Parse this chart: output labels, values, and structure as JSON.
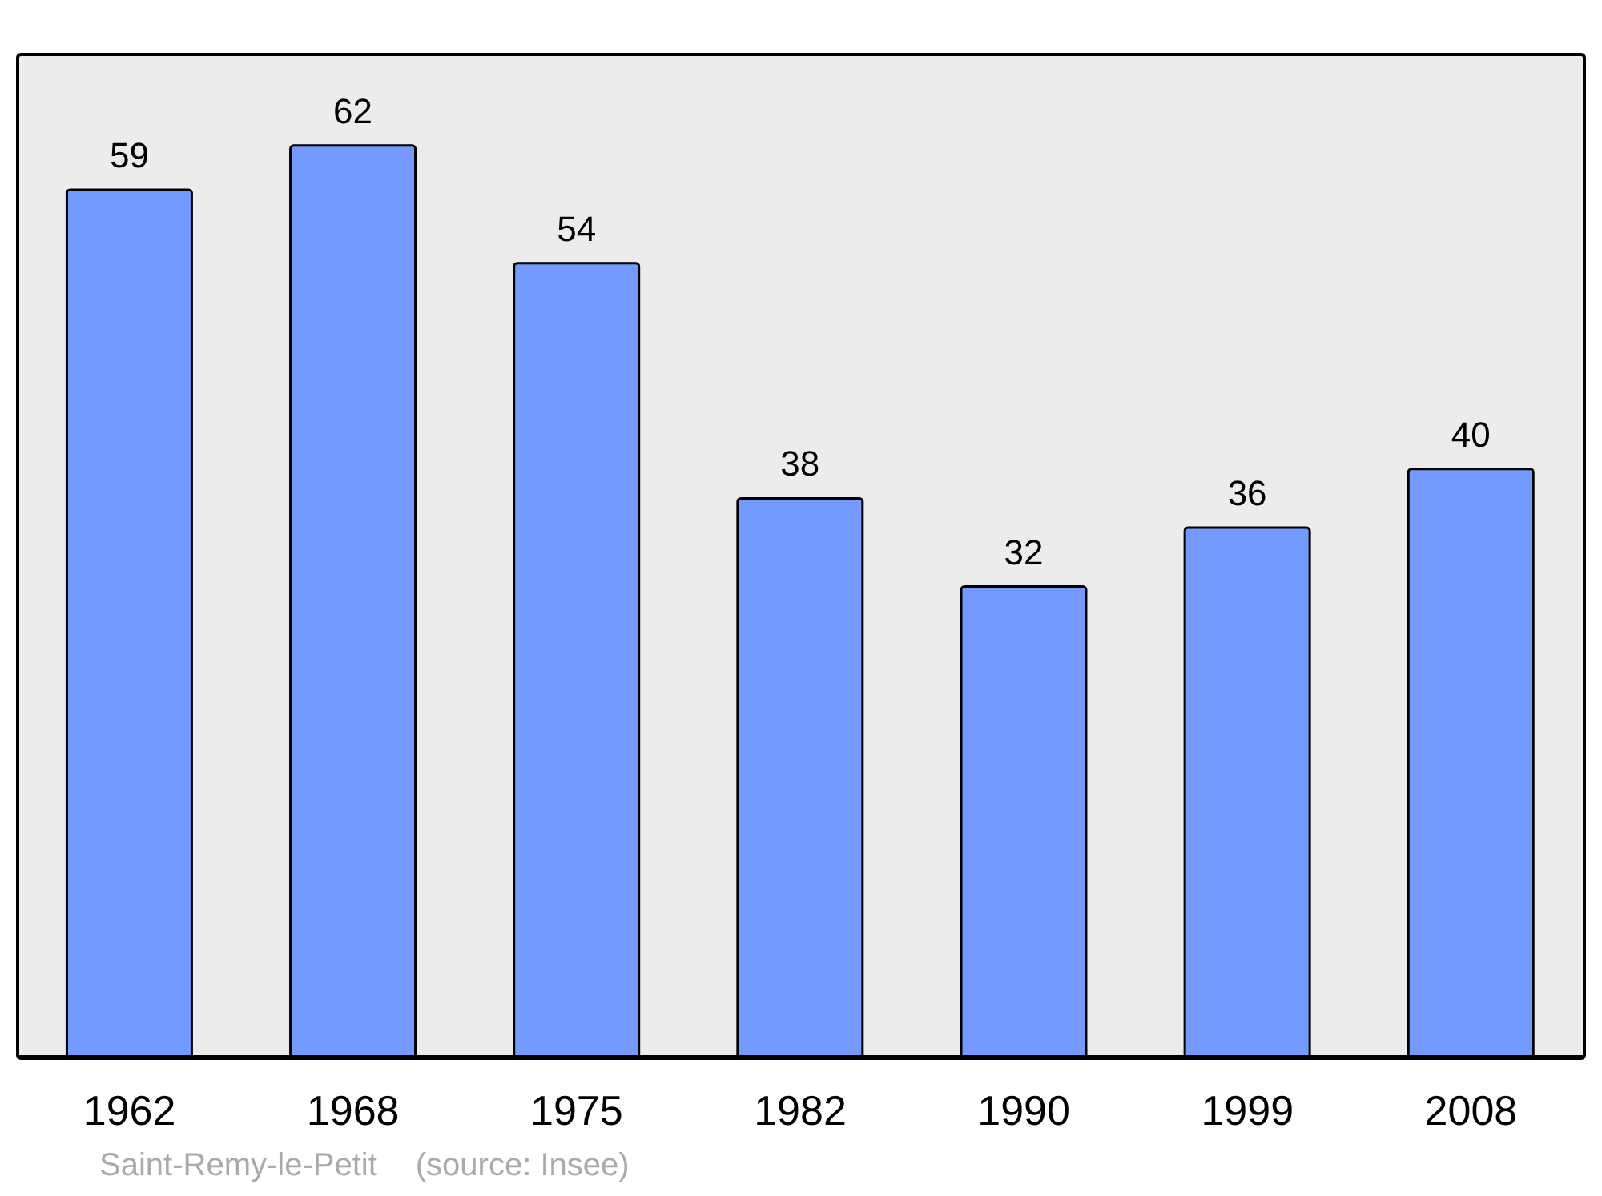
{
  "chart_data": {
    "type": "bar",
    "categories": [
      "1962",
      "1968",
      "1975",
      "1982",
      "1990",
      "1999",
      "2008"
    ],
    "values": [
      59,
      62,
      54,
      38,
      32,
      36,
      40
    ],
    "color": "#7499ff",
    "data_labels": true,
    "tick_labels": "x",
    "annotations": [
      "Saint-Remy-le-Petit",
      "(source: Insee)"
    ]
  }
}
